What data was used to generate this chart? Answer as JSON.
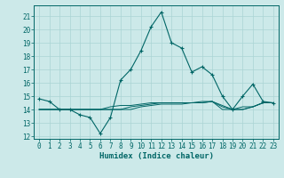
{
  "xlabel": "Humidex (Indice chaleur)",
  "xlim": [
    -0.5,
    23.5
  ],
  "ylim": [
    11.8,
    21.8
  ],
  "yticks": [
    12,
    13,
    14,
    15,
    16,
    17,
    18,
    19,
    20,
    21
  ],
  "xticks": [
    0,
    1,
    2,
    3,
    4,
    5,
    6,
    7,
    8,
    9,
    10,
    11,
    12,
    13,
    14,
    15,
    16,
    17,
    18,
    19,
    20,
    21,
    22,
    23
  ],
  "bg_color": "#cce9e9",
  "grid_color": "#aad4d4",
  "line_color": "#006666",
  "series_main": [
    14.8,
    14.6,
    14.0,
    14.0,
    13.6,
    13.4,
    12.2,
    13.4,
    16.2,
    17.0,
    18.4,
    20.2,
    21.3,
    19.0,
    18.6,
    16.8,
    17.2,
    16.6,
    15.0,
    14.0,
    15.0,
    15.9,
    14.6,
    14.5
  ],
  "series_flat": [
    [
      14.0,
      14.0,
      14.0,
      14.0,
      14.0,
      14.0,
      14.0,
      14.0,
      14.0,
      14.0,
      14.2,
      14.3,
      14.4,
      14.4,
      14.4,
      14.5,
      14.5,
      14.6,
      14.0,
      14.0,
      14.2,
      14.2,
      14.5,
      14.5
    ],
    [
      14.0,
      14.0,
      14.0,
      14.0,
      14.0,
      14.0,
      14.0,
      14.0,
      14.0,
      14.2,
      14.3,
      14.4,
      14.5,
      14.5,
      14.5,
      14.5,
      14.6,
      14.6,
      14.2,
      14.0,
      14.0,
      14.2,
      14.5,
      14.5
    ],
    [
      14.0,
      14.0,
      14.0,
      14.0,
      14.0,
      14.0,
      14.0,
      14.2,
      14.3,
      14.3,
      14.4,
      14.5,
      14.5,
      14.5,
      14.5,
      14.5,
      14.5,
      14.6,
      14.3,
      14.0,
      14.0,
      14.2,
      14.5,
      14.5
    ]
  ],
  "tick_fontsize": 5.5,
  "xlabel_fontsize": 6.5,
  "line_width": 0.8,
  "marker_size": 3.0
}
